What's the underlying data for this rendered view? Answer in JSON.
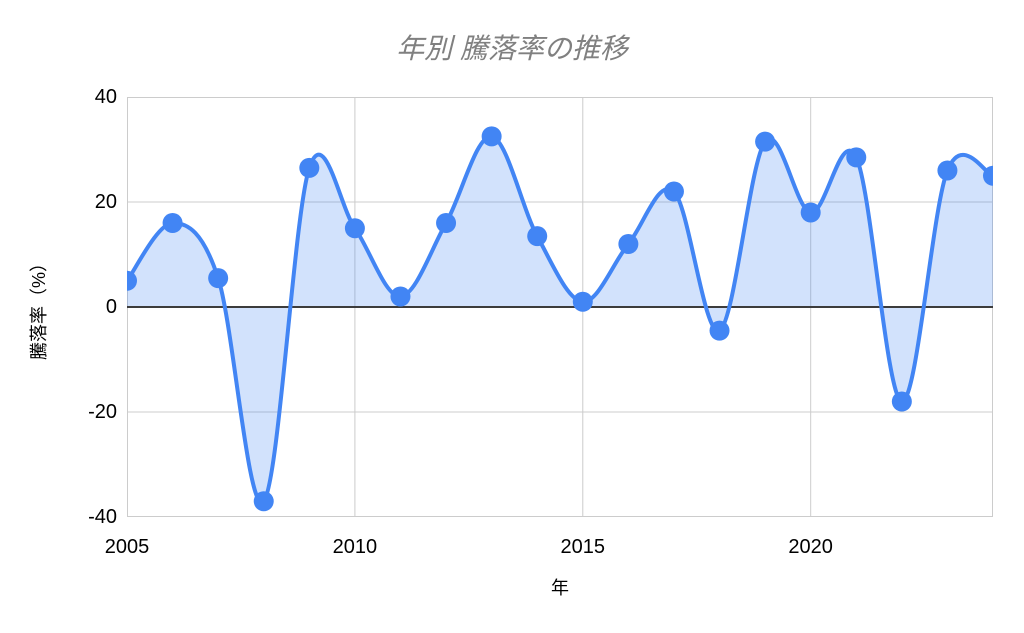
{
  "chart_data": {
    "type": "area",
    "title": "年別 騰落率の推移",
    "xlabel": "年",
    "ylabel": "騰落率（%）",
    "x": [
      2005,
      2006,
      2007,
      2008,
      2009,
      2010,
      2011,
      2012,
      2013,
      2014,
      2015,
      2016,
      2017,
      2018,
      2019,
      2020,
      2021,
      2022,
      2023,
      2024
    ],
    "values": [
      5,
      16,
      5.5,
      -37,
      26.5,
      15,
      2,
      16,
      32.5,
      13.5,
      1,
      12,
      22,
      -4.5,
      31.5,
      18,
      28.5,
      -18,
      26,
      25
    ],
    "xlim": [
      2005,
      2024
    ],
    "ylim": [
      -40,
      40
    ],
    "yticks": [
      40,
      20,
      0,
      -20,
      -40
    ],
    "xticks": [
      2005,
      2010,
      2015,
      2020
    ],
    "grid": true,
    "legend": "none",
    "line_smooth": true,
    "baseline": 0,
    "colors": {
      "line": "#4285f4",
      "marker": "#4285f4",
      "fill": "#4285f4",
      "fill_opacity": 0.24,
      "grid": "#cccccc",
      "zero_axis": "#3c3c3c",
      "title_text": "#808080",
      "tick_text": "#000000",
      "background": "#ffffff"
    }
  }
}
